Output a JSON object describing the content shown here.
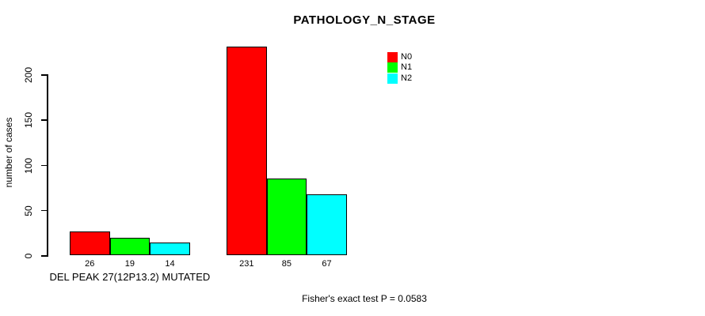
{
  "chart_data": {
    "type": "bar",
    "title": "PATHOLOGY_N_STAGE",
    "ylabel": "number of cases",
    "xlabel": "",
    "ylim": [
      0,
      235
    ],
    "yticks": [
      0,
      50,
      100,
      150,
      200
    ],
    "grid": false,
    "categories": [
      "DEL PEAK 27(12P13.2) MUTATED",
      ""
    ],
    "series": [
      {
        "name": "N0",
        "color": "#ff0000",
        "values": [
          26,
          231
        ]
      },
      {
        "name": "N1",
        "color": "#00ff00",
        "values": [
          19,
          85
        ]
      },
      {
        "name": "N2",
        "color": "#00ffff",
        "values": [
          14,
          67
        ]
      }
    ],
    "legend": {
      "position": "top-right",
      "entries": [
        "N0",
        "N1",
        "N2"
      ]
    },
    "annotation": "Fisher's exact test P = 0.0583"
  }
}
